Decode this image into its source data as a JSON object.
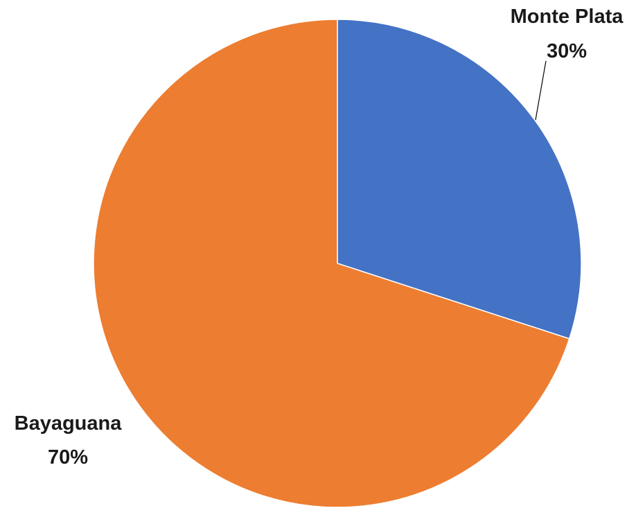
{
  "chart_data": {
    "type": "pie",
    "title": "",
    "slices": [
      {
        "name": "Monte Plata",
        "value": 30,
        "label_percent": "30%",
        "color": "#4472C4"
      },
      {
        "name": "Bayaguana",
        "value": 70,
        "label_percent": "70%",
        "color": "#ED7D31"
      }
    ],
    "start_angle_deg": 0,
    "direction": "clockwise",
    "legend": "none",
    "data_labels": "category name and percentage, outside"
  }
}
